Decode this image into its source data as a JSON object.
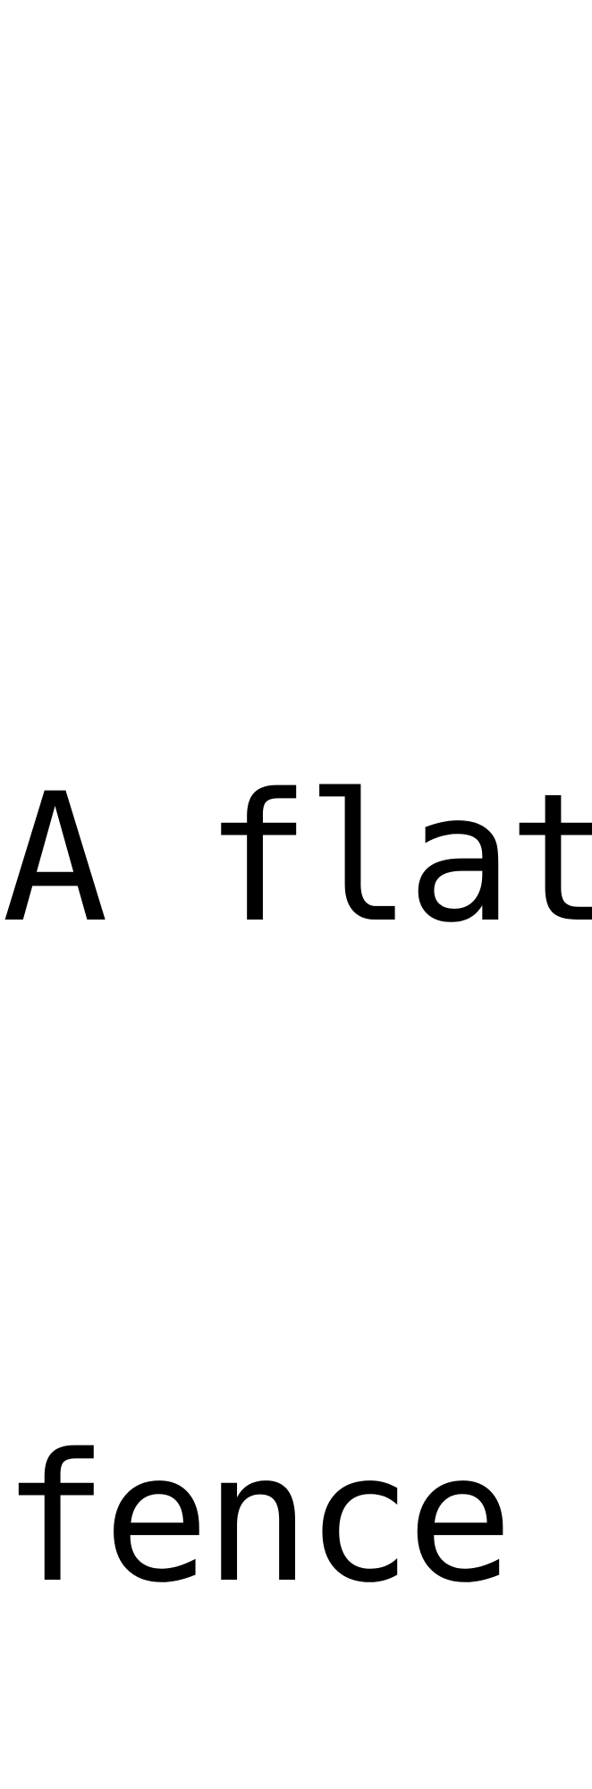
{
  "lines": [
    "A flat",
    "fence"
  ],
  "text_color": "#000000",
  "background_color": "#ffffff"
}
